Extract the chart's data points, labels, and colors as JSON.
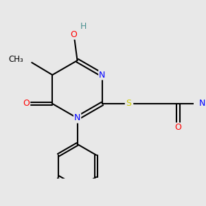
{
  "bg_color": "#e8e8e8",
  "bond_color": "#000000",
  "atom_colors": {
    "N": "#0000ff",
    "O": "#ff0000",
    "S": "#cccc00",
    "H": "#4a9090",
    "C": "#000000"
  }
}
